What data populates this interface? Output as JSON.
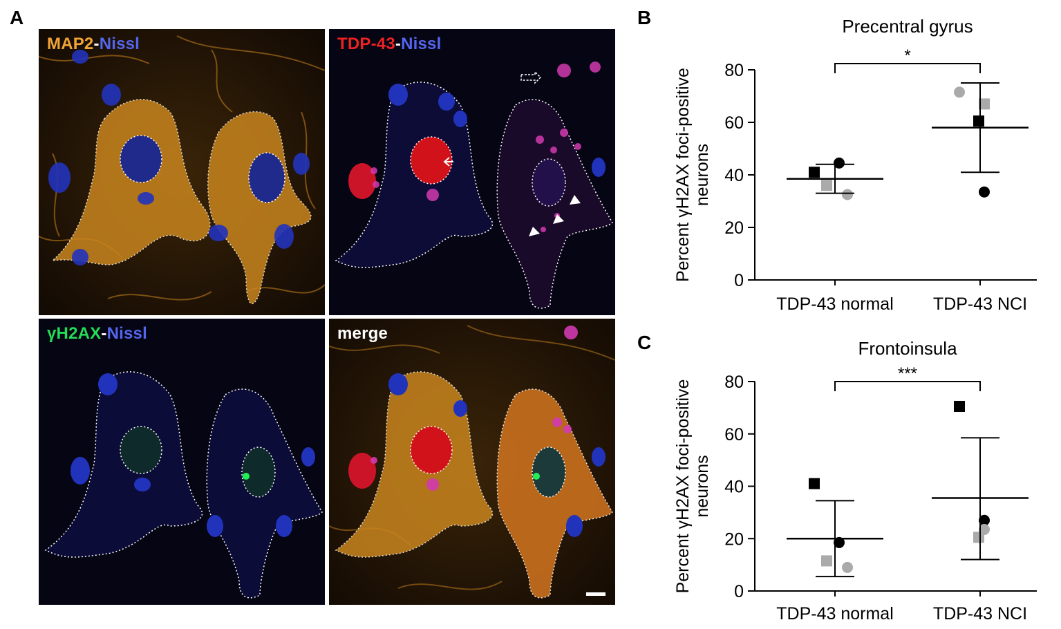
{
  "panels": {
    "A": "A",
    "B": "B",
    "C": "C"
  },
  "micrographs": [
    {
      "id": "map2",
      "label_parts": [
        {
          "text": "MAP2",
          "color": "#f2a536"
        },
        {
          "text": "-",
          "color": "#ffffff"
        },
        {
          "text": "Nissl",
          "color": "#5566ee"
        }
      ]
    },
    {
      "id": "tdp43",
      "label_parts": [
        {
          "text": "TDP-43",
          "color": "#ee2222"
        },
        {
          "text": "-",
          "color": "#ffffff"
        },
        {
          "text": "Nissl",
          "color": "#5566ee"
        }
      ]
    },
    {
      "id": "gh2ax",
      "label_parts": [
        {
          "text": "γH2AX",
          "color": "#22dd55"
        },
        {
          "text": "-",
          "color": "#ffffff"
        },
        {
          "text": "Nissl",
          "color": "#5566ee"
        }
      ]
    },
    {
      "id": "merge",
      "label_parts": [
        {
          "text": "merge",
          "color": "#ffffff"
        }
      ]
    }
  ],
  "chart_data": [
    {
      "type": "scatter",
      "panel": "B",
      "title": "Precentral gyrus",
      "ylabel_line1": "Percent γH2AX foci-positive",
      "ylabel_line2": "neurons",
      "categories": [
        "TDP-43 normal",
        "TDP-43 NCI"
      ],
      "ylim": [
        0,
        80
      ],
      "yticks": [
        0,
        20,
        40,
        60,
        80
      ],
      "significance": "*",
      "groups": [
        {
          "category": "TDP-43 normal",
          "mean": 38.5,
          "upper": 44,
          "lower": 33,
          "points": [
            {
              "value": 41,
              "marker": "square",
              "color": "#000000"
            },
            {
              "value": 44.5,
              "marker": "circle",
              "color": "#000000"
            },
            {
              "value": 36,
              "marker": "square",
              "color": "#aaaaaa"
            },
            {
              "value": 32.5,
              "marker": "circle",
              "color": "#aaaaaa"
            }
          ]
        },
        {
          "category": "TDP-43 NCI",
          "mean": 58,
          "upper": 75,
          "lower": 41,
          "points": [
            {
              "value": 71.5,
              "marker": "circle",
              "color": "#aaaaaa"
            },
            {
              "value": 67,
              "marker": "square",
              "color": "#aaaaaa"
            },
            {
              "value": 60.5,
              "marker": "square",
              "color": "#000000"
            },
            {
              "value": 33.5,
              "marker": "circle",
              "color": "#000000"
            }
          ]
        }
      ]
    },
    {
      "type": "scatter",
      "panel": "C",
      "title": "Frontoinsula",
      "ylabel_line1": "Percent γH2AX foci-positive",
      "ylabel_line2": "neurons",
      "categories": [
        "TDP-43 normal",
        "TDP-43 NCI"
      ],
      "ylim": [
        0,
        80
      ],
      "yticks": [
        0,
        20,
        40,
        60,
        80
      ],
      "significance": "***",
      "groups": [
        {
          "category": "TDP-43 normal",
          "mean": 20,
          "upper": 34.5,
          "lower": 5.5,
          "points": [
            {
              "value": 41,
              "marker": "square",
              "color": "#000000"
            },
            {
              "value": 18.5,
              "marker": "circle",
              "color": "#000000"
            },
            {
              "value": 11.5,
              "marker": "square",
              "color": "#aaaaaa"
            },
            {
              "value": 9,
              "marker": "circle",
              "color": "#aaaaaa"
            }
          ]
        },
        {
          "category": "TDP-43 NCI",
          "mean": 35.5,
          "upper": 58.5,
          "lower": 12,
          "points": [
            {
              "value": 70.5,
              "marker": "square",
              "color": "#000000"
            },
            {
              "value": 27,
              "marker": "circle",
              "color": "#000000"
            },
            {
              "value": 20.5,
              "marker": "square",
              "color": "#aaaaaa"
            },
            {
              "value": 23.5,
              "marker": "circle",
              "color": "#aaaaaa"
            }
          ]
        }
      ]
    }
  ]
}
